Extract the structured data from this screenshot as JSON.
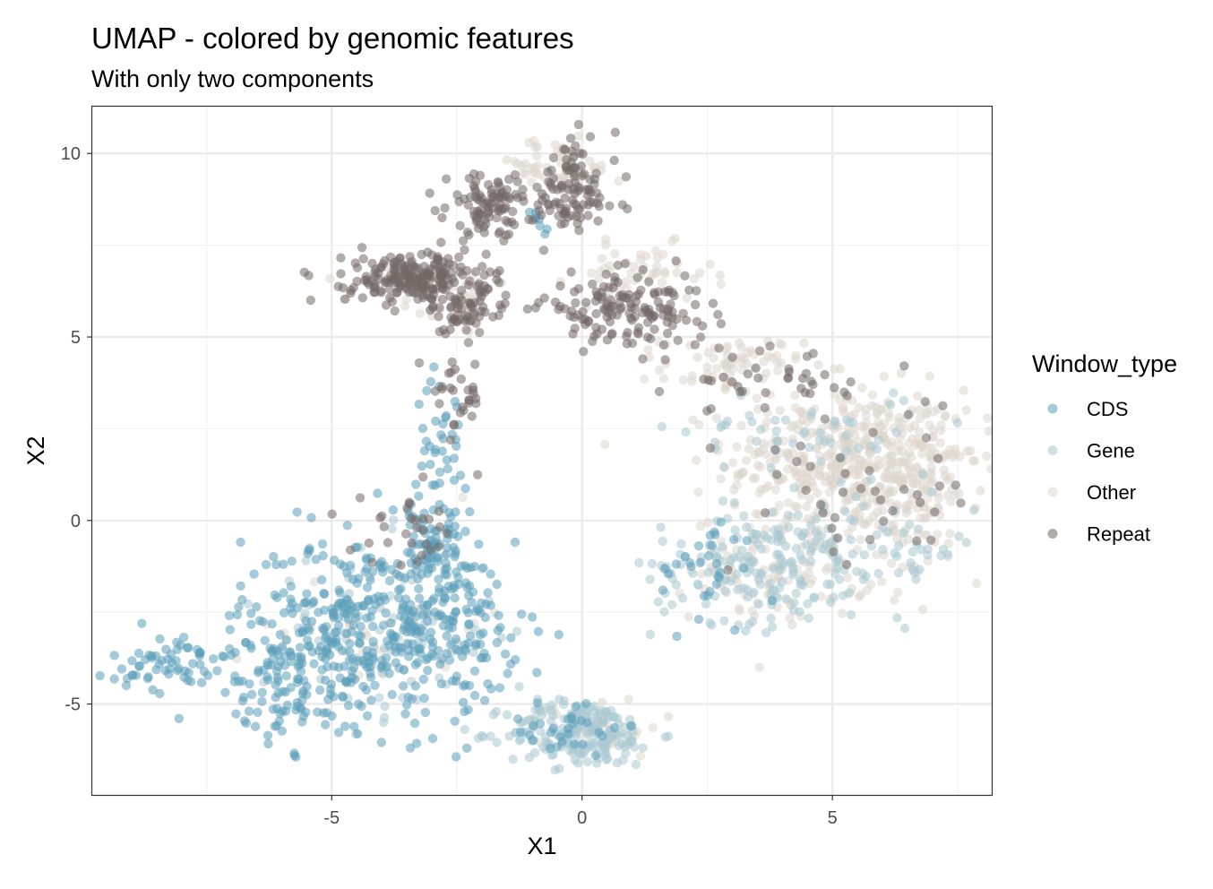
{
  "chart_data": {
    "type": "scatter",
    "title": "UMAP - colored by genomic features",
    "subtitle": "With only two components",
    "xlabel": "X1",
    "ylabel": "X2",
    "xlim": [
      -9.8,
      8.2
    ],
    "ylim": [
      -7.5,
      11.3
    ],
    "x_ticks": [
      -5,
      0,
      5
    ],
    "x_tick_labels": [
      "-5",
      "0",
      "5"
    ],
    "y_ticks": [
      -5,
      0,
      5,
      10
    ],
    "y_tick_labels": [
      "-5",
      "0",
      "5",
      "10"
    ],
    "grid": true,
    "legend": {
      "title": "Window_type",
      "position": "right"
    },
    "series": [
      {
        "name": "CDS",
        "color": "#5b9fb9",
        "clusters": [
          {
            "cx": -4.2,
            "cy": -3.0,
            "sx": 1.3,
            "sy": 1.3,
            "n": 420
          },
          {
            "cx": -8.0,
            "cy": -3.9,
            "sx": 0.7,
            "sy": 0.4,
            "n": 70
          },
          {
            "cx": -5.8,
            "cy": -4.6,
            "sx": 0.6,
            "sy": 0.6,
            "n": 70
          },
          {
            "cx": -3.0,
            "cy": -1.0,
            "sx": 0.6,
            "sy": 0.7,
            "n": 80
          },
          {
            "cx": -2.8,
            "cy": 2.0,
            "sx": 0.25,
            "sy": 1.0,
            "n": 45
          },
          {
            "cx": -2.1,
            "cy": -3.0,
            "sx": 0.4,
            "sy": 0.6,
            "n": 30
          },
          {
            "cx": -0.3,
            "cy": -5.6,
            "sx": 0.6,
            "sy": 0.4,
            "n": 30
          },
          {
            "cx": 2.5,
            "cy": -1.5,
            "sx": 0.5,
            "sy": 0.8,
            "n": 30
          },
          {
            "cx": -1.0,
            "cy": 8.2,
            "sx": 0.3,
            "sy": 0.3,
            "n": 8
          }
        ]
      },
      {
        "name": "Gene",
        "color": "#a9c8d2",
        "clusters": [
          {
            "cx": 0.0,
            "cy": -5.8,
            "sx": 0.75,
            "sy": 0.45,
            "n": 200
          },
          {
            "cx": 3.4,
            "cy": -1.2,
            "sx": 1.0,
            "sy": 0.8,
            "n": 140
          },
          {
            "cx": 5.5,
            "cy": -0.8,
            "sx": 1.2,
            "sy": 0.8,
            "n": 90
          },
          {
            "cx": -4.0,
            "cy": -3.0,
            "sx": 1.2,
            "sy": 1.2,
            "n": 90
          },
          {
            "cx": 4.5,
            "cy": 2.5,
            "sx": 1.2,
            "sy": 0.6,
            "n": 50
          }
        ]
      },
      {
        "name": "Other",
        "color": "#dcd6cc",
        "clusters": [
          {
            "cx": 5.3,
            "cy": 1.6,
            "sx": 1.2,
            "sy": 1.0,
            "n": 420
          },
          {
            "cx": 6.8,
            "cy": 0.6,
            "sx": 0.6,
            "sy": 1.1,
            "n": 100
          },
          {
            "cx": 4.0,
            "cy": -1.3,
            "sx": 0.9,
            "sy": 0.7,
            "n": 110
          },
          {
            "cx": 3.0,
            "cy": 4.2,
            "sx": 0.7,
            "sy": 0.4,
            "n": 70
          },
          {
            "cx": -0.6,
            "cy": 9.6,
            "sx": 0.7,
            "sy": 0.4,
            "n": 60
          },
          {
            "cx": 1.2,
            "cy": 6.7,
            "sx": 0.7,
            "sy": 0.4,
            "n": 50
          },
          {
            "cx": -3.0,
            "cy": 6.2,
            "sx": 0.8,
            "sy": 0.4,
            "n": 40
          },
          {
            "cx": 0.4,
            "cy": -5.6,
            "sx": 0.6,
            "sy": 0.4,
            "n": 30
          },
          {
            "cx": -4.2,
            "cy": -2.8,
            "sx": 1.1,
            "sy": 1.0,
            "n": 30
          }
        ]
      },
      {
        "name": "Repeat",
        "color": "#736866",
        "clusters": [
          {
            "cx": -3.3,
            "cy": 6.6,
            "sx": 0.7,
            "sy": 0.35,
            "n": 220
          },
          {
            "cx": -2.3,
            "cy": 5.7,
            "sx": 0.4,
            "sy": 0.35,
            "n": 60
          },
          {
            "cx": -1.8,
            "cy": 8.6,
            "sx": 0.45,
            "sy": 0.4,
            "n": 100
          },
          {
            "cx": -0.2,
            "cy": 9.0,
            "sx": 0.45,
            "sy": 0.7,
            "n": 100
          },
          {
            "cx": 0.6,
            "cy": 5.8,
            "sx": 0.7,
            "sy": 0.45,
            "n": 110
          },
          {
            "cx": 1.8,
            "cy": 5.5,
            "sx": 0.6,
            "sy": 0.4,
            "n": 40
          },
          {
            "cx": -2.5,
            "cy": 3.3,
            "sx": 0.25,
            "sy": 0.6,
            "n": 30
          },
          {
            "cx": 5.5,
            "cy": 1.0,
            "sx": 1.3,
            "sy": 1.3,
            "n": 50
          },
          {
            "cx": -3.4,
            "cy": -0.3,
            "sx": 0.6,
            "sy": 0.5,
            "n": 30
          },
          {
            "cx": 3.4,
            "cy": 3.9,
            "sx": 0.8,
            "sy": 0.4,
            "n": 30
          }
        ]
      }
    ]
  }
}
